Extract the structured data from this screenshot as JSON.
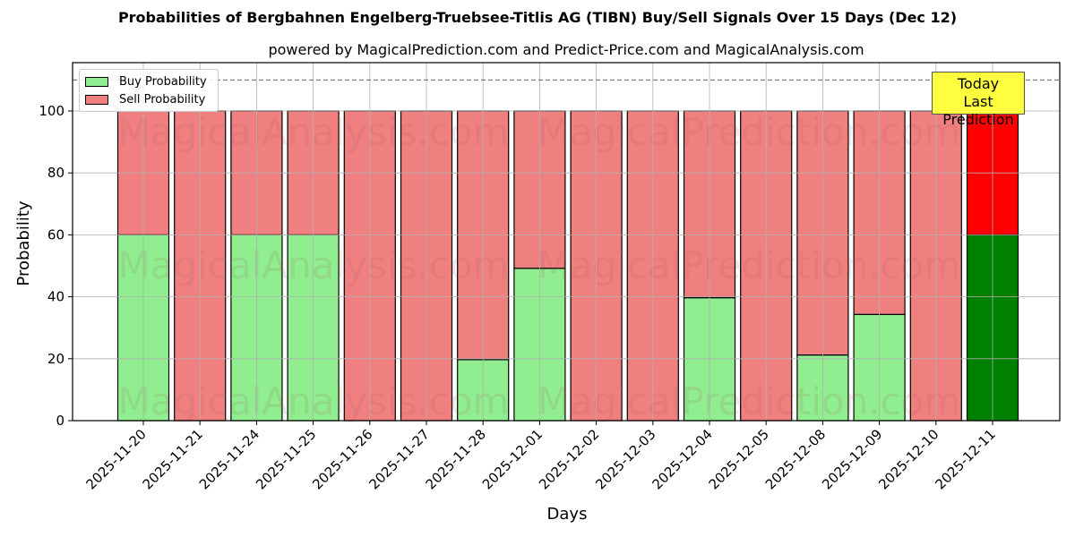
{
  "chart_data": {
    "type": "bar",
    "stacked": true,
    "title": "Probabilities of Bergbahnen Engelberg-Truebsee-Titlis AG (TIBN) Buy/Sell Signals Over 15 Days (Dec 12)",
    "subtitle": "powered by MagicalPrediction.com and Predict-Price.com and MagicalAnalysis.com",
    "xlabel": "Days",
    "ylabel": "Probability",
    "ylim": [
      0,
      115
    ],
    "yticks": [
      0,
      20,
      40,
      60,
      80,
      100
    ],
    "grid": true,
    "legend_position": "upper left",
    "reference_line": {
      "y": 110,
      "style": "dashed",
      "color": "#808080"
    },
    "categories": [
      "2025-11-20",
      "2025-11-21",
      "2025-11-24",
      "2025-11-25",
      "2025-11-26",
      "2025-11-27",
      "2025-11-28",
      "2025-12-01",
      "2025-12-02",
      "2025-12-03",
      "2025-12-04",
      "2025-12-05",
      "2025-12-08",
      "2025-12-09",
      "2025-12-10",
      "2025-12-11"
    ],
    "series": [
      {
        "name": "Buy Probability",
        "color": "#90ee90",
        "values": [
          60,
          0,
          60,
          60,
          0,
          0,
          19.7,
          49.2,
          0,
          0,
          39.7,
          0,
          21.2,
          34.3,
          0,
          60
        ]
      },
      {
        "name": "Sell Probability",
        "color": "#f08080",
        "values": [
          40,
          100,
          40,
          40,
          100,
          100,
          80.3,
          50.8,
          100,
          100,
          60.3,
          100,
          78.8,
          65.7,
          100,
          40
        ]
      }
    ],
    "highlight": {
      "index": 15,
      "buy_color": "#008000",
      "sell_color": "#ff0000"
    },
    "annotation": {
      "text_line1": "Today",
      "text_line2": "Last Prediction",
      "background": "#ffff40"
    },
    "watermarks": [
      "MagicalAnalysis.com",
      "MagicalPrediction.com"
    ]
  },
  "title": "Probabilities of Bergbahnen Engelberg-Truebsee-Titlis AG (TIBN) Buy/Sell Signals Over 15 Days (Dec 12)",
  "subtitle": "powered by MagicalPrediction.com and Predict-Price.com and MagicalAnalysis.com",
  "legend": {
    "buy": "Buy Probability",
    "sell": "Sell Probability"
  },
  "annotation": {
    "line1": "Today",
    "line2": "Last Prediction"
  }
}
